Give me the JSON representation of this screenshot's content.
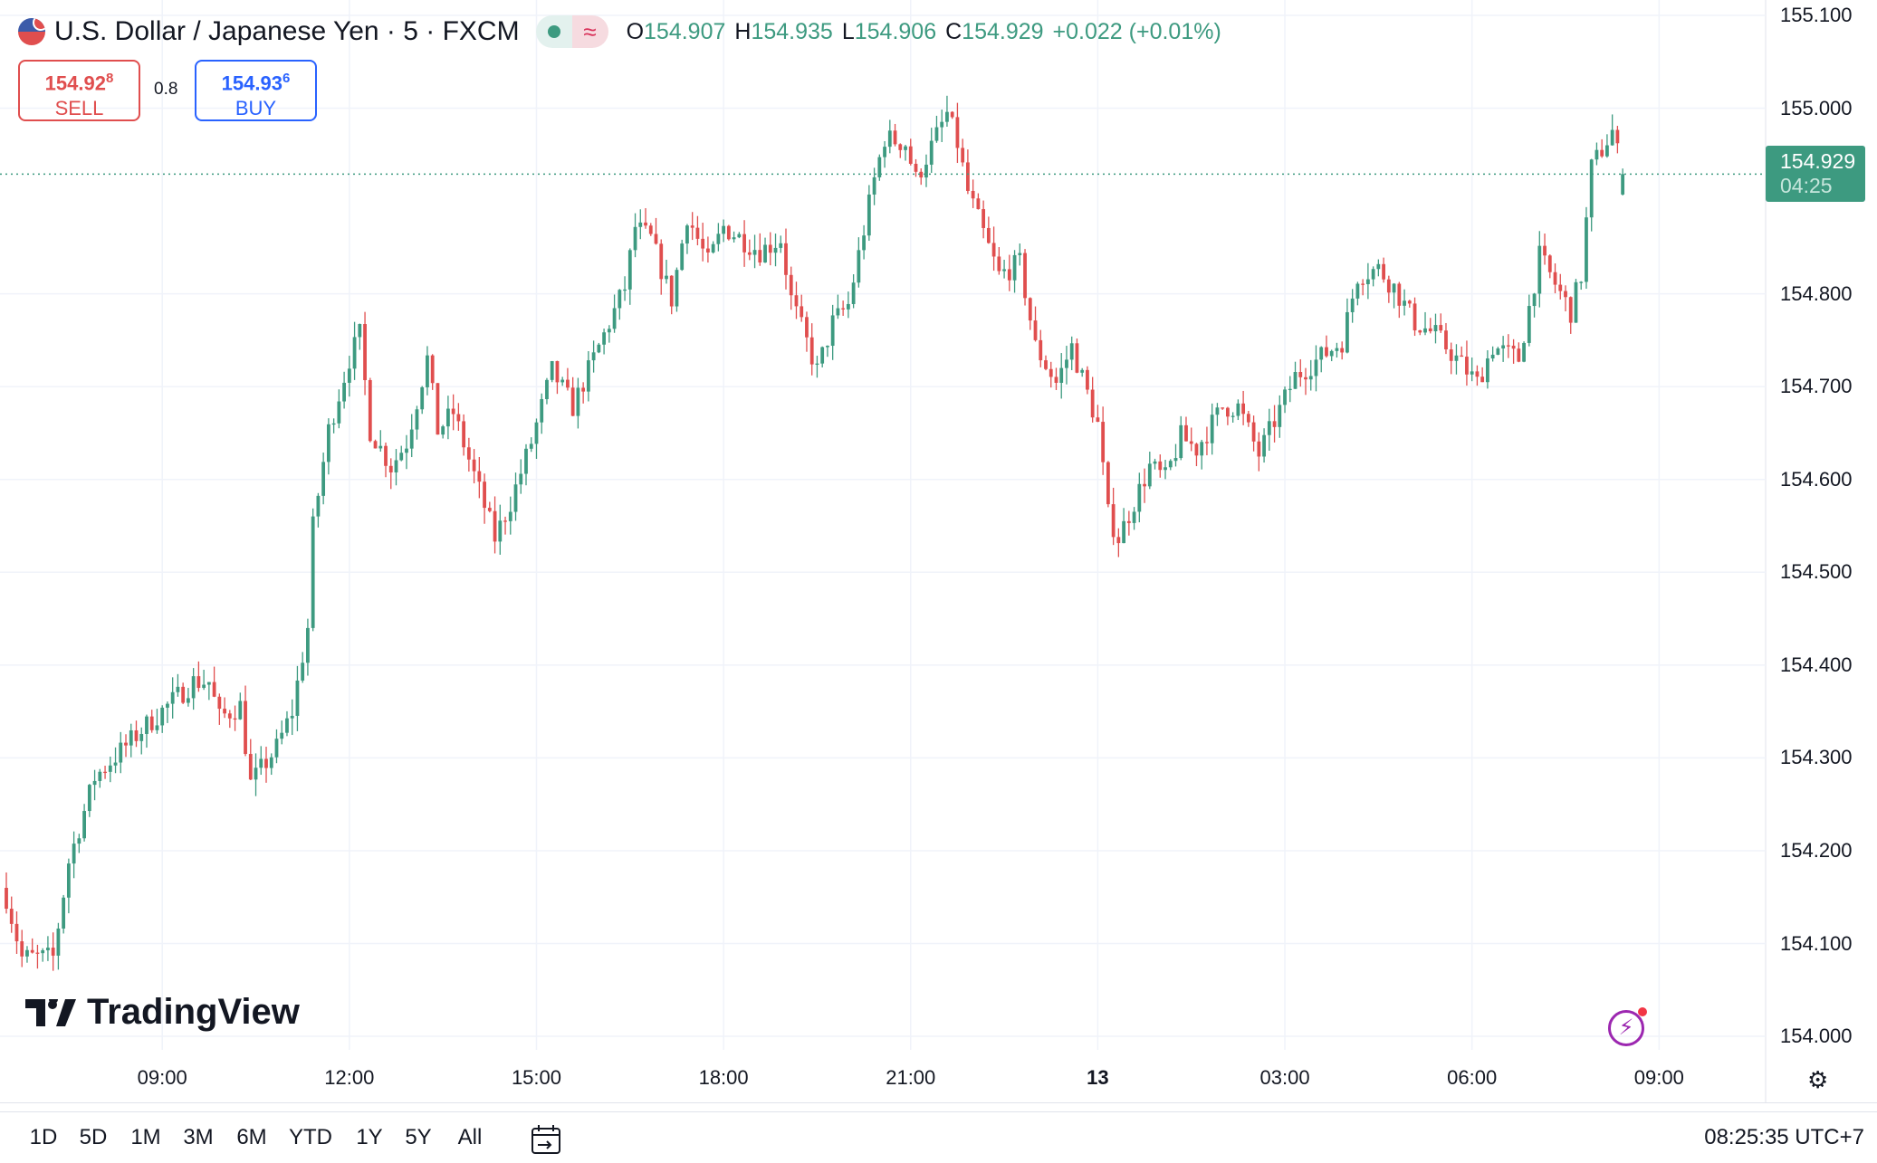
{
  "header": {
    "title": "U.S. Dollar / Japanese Yen · 5 · FXCM",
    "status_icon": "market-open-dot",
    "delay_icon": "≈",
    "ohlc": {
      "o_label": "O",
      "o": "154.907",
      "h_label": "H",
      "h": "154.935",
      "l_label": "L",
      "l": "154.906",
      "c_label": "C",
      "c": "154.929",
      "change": "+0.022 (+0.01%)"
    }
  },
  "trade": {
    "sell_price": "154.92",
    "sell_sup": "8",
    "sell_label": "SELL",
    "spread": "0.8",
    "buy_price": "154.93",
    "buy_sup": "6",
    "buy_label": "BUY"
  },
  "price_label": {
    "price": "154.929",
    "countdown": "04:25"
  },
  "colors": {
    "up": "#3d9a80",
    "down": "#e04e4e",
    "grid": "#f0f3fa"
  },
  "toolbar": {
    "ranges": [
      "1D",
      "5D",
      "1M",
      "3M",
      "6M",
      "YTD",
      "1Y",
      "5Y",
      "All"
    ],
    "calendar_icon": "calendar-goto-icon",
    "time": "08:25:35 UTC+7"
  },
  "logo": "TradingView",
  "chart_data": {
    "type": "candlestick",
    "symbol": "USDJPY",
    "interval": "5m",
    "ylim": [
      154.0,
      155.1
    ],
    "y_ticks": [
      "155.100",
      "155.000",
      "154.800",
      "154.700",
      "154.600",
      "154.500",
      "154.400",
      "154.300",
      "154.200",
      "154.100",
      "154.000"
    ],
    "x_ticks": [
      "09:00",
      "12:00",
      "15:00",
      "18:00",
      "21:00",
      "13",
      "03:00",
      "06:00",
      "09:00"
    ],
    "bar_count": 312,
    "first_bar_time": "06:30",
    "last_bar": {
      "o": 154.907,
      "h": 154.935,
      "l": 154.906,
      "c": 154.929
    },
    "close_path": [
      [
        0,
        154.15
      ],
      [
        3,
        154.085
      ],
      [
        9,
        154.085
      ],
      [
        12,
        154.188
      ],
      [
        17,
        154.279
      ],
      [
        26,
        154.33
      ],
      [
        36,
        154.382
      ],
      [
        39,
        154.382
      ],
      [
        41,
        154.343
      ],
      [
        45,
        154.356
      ],
      [
        47,
        154.272
      ],
      [
        52,
        154.311
      ],
      [
        55,
        154.35
      ],
      [
        58,
        154.44
      ],
      [
        59,
        154.549
      ],
      [
        62,
        154.653
      ],
      [
        66,
        154.73
      ],
      [
        68,
        154.756
      ],
      [
        70,
        154.653
      ],
      [
        74,
        154.614
      ],
      [
        77,
        154.64
      ],
      [
        81,
        154.73
      ],
      [
        83,
        154.653
      ],
      [
        86,
        154.672
      ],
      [
        91,
        154.588
      ],
      [
        94,
        154.537
      ],
      [
        97,
        154.575
      ],
      [
        101,
        154.64
      ],
      [
        105,
        154.717
      ],
      [
        109,
        154.678
      ],
      [
        113,
        154.73
      ],
      [
        119,
        154.807
      ],
      [
        121,
        154.872
      ],
      [
        124,
        154.859
      ],
      [
        128,
        154.794
      ],
      [
        131,
        154.885
      ],
      [
        135,
        154.833
      ],
      [
        138,
        154.872
      ],
      [
        145,
        154.846
      ],
      [
        149,
        154.859
      ],
      [
        151,
        154.794
      ],
      [
        156,
        154.717
      ],
      [
        159,
        154.769
      ],
      [
        162,
        154.788
      ],
      [
        167,
        154.923
      ],
      [
        169,
        154.968
      ],
      [
        173,
        154.962
      ],
      [
        175,
        154.923
      ],
      [
        181,
        154.994
      ],
      [
        183,
        154.962
      ],
      [
        185,
        154.91
      ],
      [
        191,
        154.82
      ],
      [
        195,
        154.833
      ],
      [
        198,
        154.743
      ],
      [
        202,
        154.704
      ],
      [
        205,
        154.743
      ],
      [
        210,
        154.659
      ],
      [
        212,
        154.562
      ],
      [
        214,
        154.537
      ],
      [
        220,
        154.614
      ],
      [
        223,
        154.601
      ],
      [
        226,
        154.646
      ],
      [
        229,
        154.633
      ],
      [
        234,
        154.678
      ],
      [
        237,
        154.678
      ],
      [
        241,
        154.627
      ],
      [
        248,
        154.711
      ],
      [
        257,
        154.749
      ],
      [
        260,
        154.82
      ],
      [
        264,
        154.827
      ],
      [
        267,
        154.807
      ],
      [
        271,
        154.769
      ],
      [
        275,
        154.756
      ],
      [
        283,
        154.704
      ],
      [
        286,
        154.743
      ],
      [
        291,
        154.73
      ],
      [
        295,
        154.84
      ],
      [
        301,
        154.781
      ],
      [
        303,
        154.82
      ],
      [
        305,
        154.936
      ],
      [
        309,
        154.975
      ],
      [
        311,
        154.929
      ]
    ]
  }
}
